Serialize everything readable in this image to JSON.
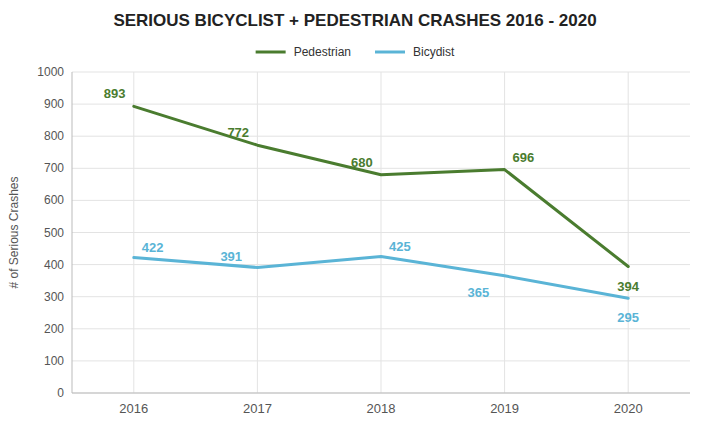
{
  "chart_data": {
    "type": "line",
    "title": "SERIOUS BICYCLIST + PEDESTRIAN CRASHES 2016 - 2020",
    "ylabel": "# of Serious Crashes",
    "x": [
      2016,
      2017,
      2018,
      2019,
      2020
    ],
    "xlim": [
      2015.5,
      2020.5
    ],
    "xticks": [
      2016,
      2017,
      2018,
      2019,
      2020
    ],
    "ylim": [
      0,
      1000
    ],
    "yticks": [
      0,
      100,
      200,
      300,
      400,
      500,
      600,
      700,
      800,
      900,
      1000
    ],
    "series": [
      {
        "name": "Pedestrian",
        "color": "#4a7c2f",
        "values": [
          893,
          772,
          680,
          696,
          394
        ]
      },
      {
        "name": "Bicydist",
        "color": "#5ab4d6",
        "values": [
          422,
          391,
          425,
          365,
          295
        ]
      }
    ],
    "grid": true,
    "data_labels": true,
    "legend": "top"
  }
}
